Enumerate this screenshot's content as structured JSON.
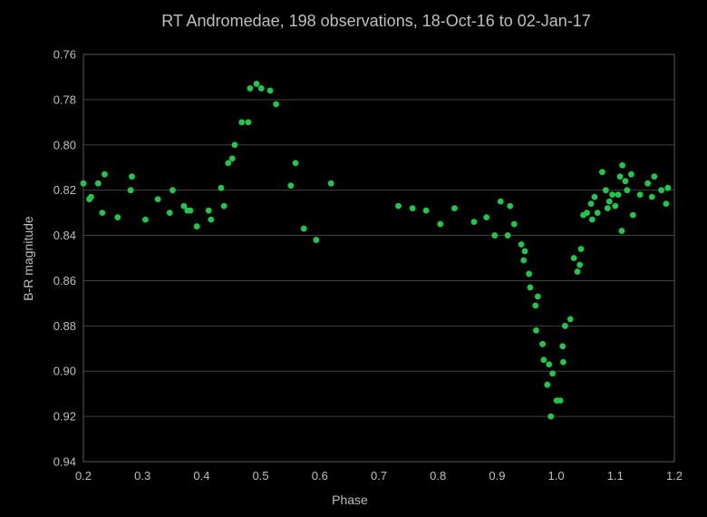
{
  "chart_data": {
    "type": "scatter",
    "title": "RT Andromedae, 198 observations, 18-Oct-16 to 02-Jan-17",
    "xlabel": "Phase",
    "ylabel": "B-R magnitude",
    "xlim": [
      0.2,
      1.2
    ],
    "ylim": [
      0.94,
      0.76
    ],
    "y_inverted": true,
    "grid": "horizontal",
    "legend": "none",
    "marker_color": "#1fc84a",
    "xticks": [
      "0.2",
      "0.3",
      "0.4",
      "0.5",
      "0.6",
      "0.7",
      "0.8",
      "0.9",
      "1.0",
      "1.1",
      "1.2"
    ],
    "yticks": [
      "0.76",
      "0.78",
      "0.80",
      "0.82",
      "0.84",
      "0.86",
      "0.88",
      "0.90",
      "0.92",
      "0.94"
    ],
    "points": [
      [
        0.2,
        0.817
      ],
      [
        0.21,
        0.824
      ],
      [
        0.213,
        0.823
      ],
      [
        0.225,
        0.817
      ],
      [
        0.232,
        0.83
      ],
      [
        0.236,
        0.813
      ],
      [
        0.258,
        0.832
      ],
      [
        0.28,
        0.82
      ],
      [
        0.282,
        0.814
      ],
      [
        0.305,
        0.833
      ],
      [
        0.326,
        0.824
      ],
      [
        0.346,
        0.83
      ],
      [
        0.351,
        0.82
      ],
      [
        0.37,
        0.827
      ],
      [
        0.376,
        0.829
      ],
      [
        0.381,
        0.829
      ],
      [
        0.392,
        0.836
      ],
      [
        0.412,
        0.829
      ],
      [
        0.416,
        0.833
      ],
      [
        0.433,
        0.819
      ],
      [
        0.438,
        0.827
      ],
      [
        0.445,
        0.808
      ],
      [
        0.452,
        0.806
      ],
      [
        0.456,
        0.8
      ],
      [
        0.468,
        0.79
      ],
      [
        0.479,
        0.79
      ],
      [
        0.482,
        0.775
      ],
      [
        0.493,
        0.773
      ],
      [
        0.501,
        0.775
      ],
      [
        0.516,
        0.776
      ],
      [
        0.526,
        0.782
      ],
      [
        0.551,
        0.818
      ],
      [
        0.559,
        0.808
      ],
      [
        0.573,
        0.837
      ],
      [
        0.594,
        0.842
      ],
      [
        0.619,
        0.817
      ],
      [
        0.733,
        0.827
      ],
      [
        0.757,
        0.828
      ],
      [
        0.78,
        0.829
      ],
      [
        0.804,
        0.835
      ],
      [
        0.828,
        0.828
      ],
      [
        0.861,
        0.834
      ],
      [
        0.882,
        0.832
      ],
      [
        0.896,
        0.84
      ],
      [
        0.906,
        0.825
      ],
      [
        0.918,
        0.84
      ],
      [
        0.922,
        0.827
      ],
      [
        0.929,
        0.835
      ],
      [
        0.941,
        0.844
      ],
      [
        0.945,
        0.851
      ],
      [
        0.947,
        0.847
      ],
      [
        0.954,
        0.857
      ],
      [
        0.956,
        0.863
      ],
      [
        0.965,
        0.871
      ],
      [
        0.966,
        0.882
      ],
      [
        0.969,
        0.867
      ],
      [
        0.977,
        0.888
      ],
      [
        0.979,
        0.895
      ],
      [
        0.985,
        0.906
      ],
      [
        0.988,
        0.897
      ],
      [
        0.991,
        0.92
      ],
      [
        0.994,
        0.901
      ],
      [
        1.001,
        0.913
      ],
      [
        1.007,
        0.913
      ],
      [
        1.011,
        0.889
      ],
      [
        1.012,
        0.896
      ],
      [
        1.015,
        0.88
      ],
      [
        1.024,
        0.877
      ],
      [
        1.03,
        0.85
      ],
      [
        1.036,
        0.856
      ],
      [
        1.04,
        0.853
      ],
      [
        1.042,
        0.846
      ],
      [
        1.046,
        0.831
      ],
      [
        1.052,
        0.83
      ],
      [
        1.059,
        0.826
      ],
      [
        1.061,
        0.833
      ],
      [
        1.065,
        0.823
      ],
      [
        1.07,
        0.83
      ],
      [
        1.078,
        0.812
      ],
      [
        1.084,
        0.82
      ],
      [
        1.087,
        0.828
      ],
      [
        1.09,
        0.825
      ],
      [
        1.095,
        0.822
      ],
      [
        1.1,
        0.827
      ],
      [
        1.105,
        0.822
      ],
      [
        1.108,
        0.814
      ],
      [
        1.111,
        0.838
      ],
      [
        1.112,
        0.809
      ],
      [
        1.117,
        0.816
      ],
      [
        1.12,
        0.82
      ],
      [
        1.127,
        0.813
      ],
      [
        1.13,
        0.831
      ],
      [
        1.142,
        0.822
      ],
      [
        1.155,
        0.817
      ],
      [
        1.162,
        0.823
      ],
      [
        1.166,
        0.814
      ],
      [
        1.178,
        0.82
      ],
      [
        1.186,
        0.826
      ],
      [
        1.189,
        0.819
      ]
    ]
  }
}
